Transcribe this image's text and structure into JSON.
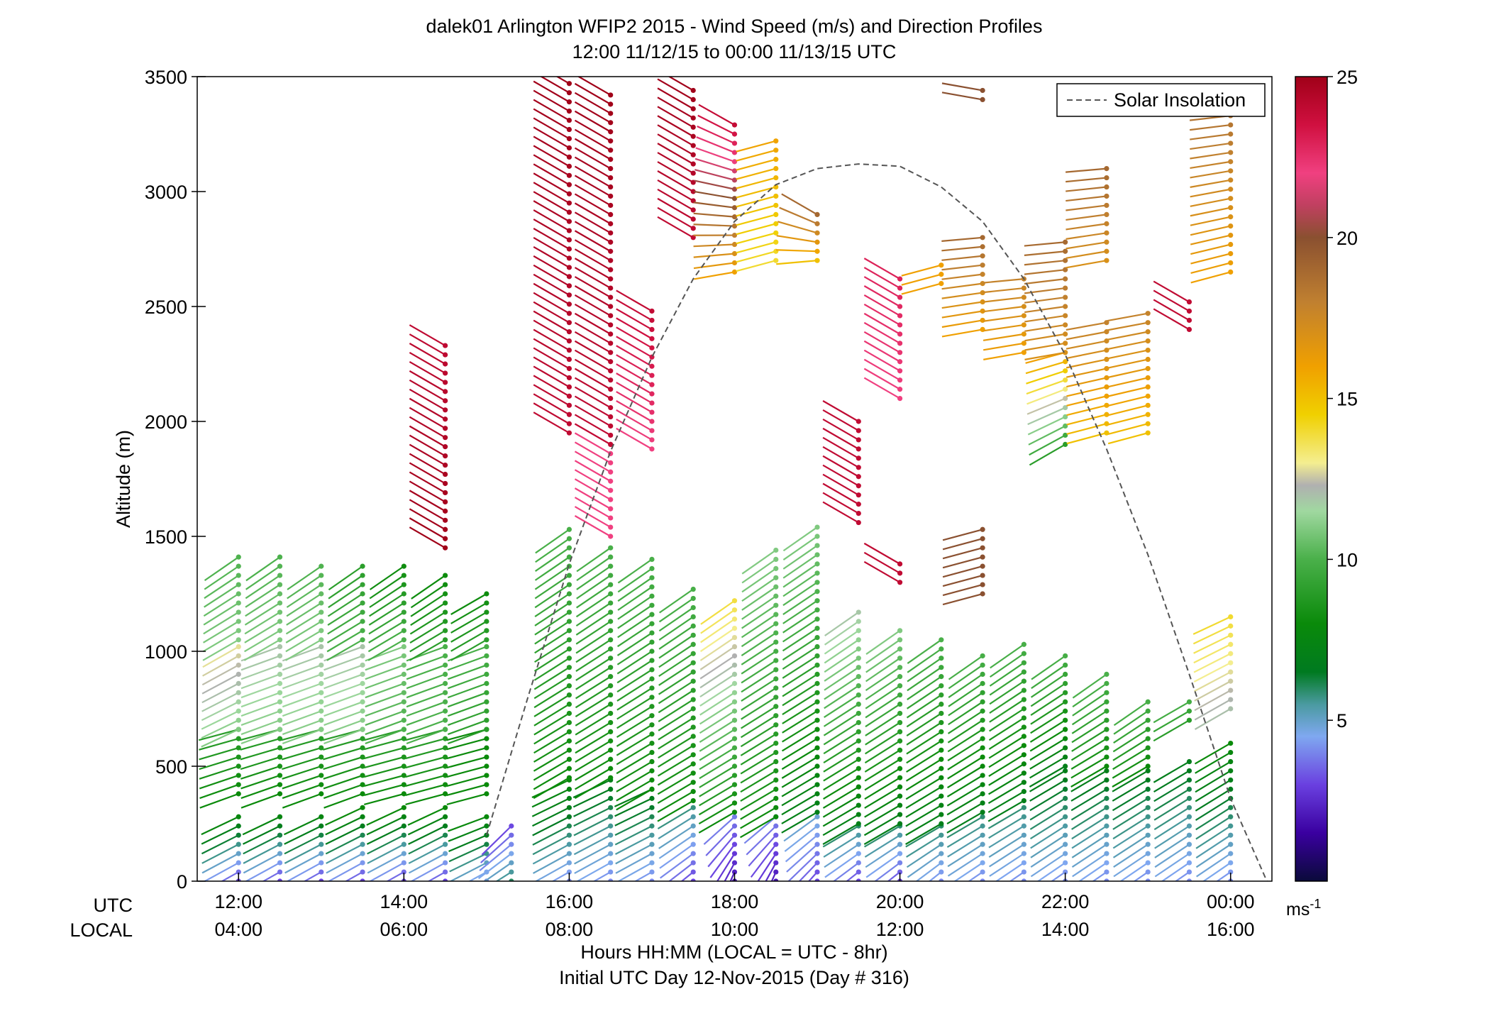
{
  "chart_data": {
    "type": "wind-barb profile",
    "title": "dalek01 Arlington WFIP2 2015 - Wind Speed (m/s) and Direction Profiles",
    "subtitle": "12:00 11/12/15 to 00:00 11/13/15  UTC",
    "ylabel": "Altitude (m)",
    "xlabel": "Hours HH:MM  (LOCAL = UTC - 8hr)",
    "xlabel2": "Initial UTC Day 12-Nov-2015 (Day # 316)",
    "utc_row_label": "UTC",
    "local_row_label": "LOCAL",
    "ylim": [
      0,
      3500
    ],
    "xlim_hours_utc": [
      11.5,
      24.5
    ],
    "yticks": [
      0,
      500,
      1000,
      1500,
      2000,
      2500,
      3000,
      3500
    ],
    "ytick_labels": [
      "0",
      "500",
      "1000",
      "1500",
      "2000",
      "2500",
      "3000",
      "3500"
    ],
    "xticks_hours_utc": [
      12,
      14,
      16,
      18,
      20,
      22,
      24
    ],
    "xtick_labels_utc": [
      "12:00",
      "14:00",
      "16:00",
      "18:00",
      "20:00",
      "22:00",
      "00:00"
    ],
    "xtick_labels_local": [
      "04:00",
      "06:00",
      "08:00",
      "10:00",
      "12:00",
      "14:00",
      "16:00"
    ],
    "legend": {
      "label": "Solar Insolation",
      "position": "top-right",
      "style": "dashed",
      "color": "#555555"
    },
    "solar_insolation_curve": {
      "x_hours_utc": [
        15.0,
        15.5,
        16.0,
        16.5,
        17.0,
        17.5,
        18.0,
        18.5,
        19.0,
        19.5,
        20.0,
        20.5,
        21.0,
        21.5,
        22.0,
        22.5,
        23.0,
        23.5,
        24.0,
        24.5
      ],
      "y_altitude_equiv": [
        200,
        800,
        1380,
        1870,
        2280,
        2620,
        2870,
        3030,
        3100,
        3120,
        3110,
        3020,
        2870,
        2620,
        2290,
        1880,
        1420,
        900,
        360,
        -50
      ]
    },
    "colorbar": {
      "label": "ms-1",
      "range": [
        0,
        25
      ],
      "ticks": [
        5,
        10,
        15,
        20,
        25
      ],
      "tick_labels": [
        "5",
        "10",
        "15",
        "20",
        "25"
      ],
      "stops": [
        {
          "v": 0,
          "color": "#0a0a3a"
        },
        {
          "v": 1.5,
          "color": "#3a00a0"
        },
        {
          "v": 3,
          "color": "#6a40e0"
        },
        {
          "v": 4.5,
          "color": "#7fa8f0"
        },
        {
          "v": 5.5,
          "color": "#4a9aa0"
        },
        {
          "v": 6.5,
          "color": "#007a20"
        },
        {
          "v": 8,
          "color": "#0a8a0a"
        },
        {
          "v": 10,
          "color": "#4ab04a"
        },
        {
          "v": 11.5,
          "color": "#a0d8a0"
        },
        {
          "v": 12.3,
          "color": "#b0b0b0"
        },
        {
          "v": 13,
          "color": "#f4ee90"
        },
        {
          "v": 14.5,
          "color": "#f0d000"
        },
        {
          "v": 16,
          "color": "#f0a000"
        },
        {
          "v": 18,
          "color": "#c08030"
        },
        {
          "v": 20,
          "color": "#8a5030"
        },
        {
          "v": 21,
          "color": "#c04060"
        },
        {
          "v": 22,
          "color": "#f04080"
        },
        {
          "v": 23.5,
          "color": "#d01040"
        },
        {
          "v": 25,
          "color": "#a00018"
        }
      ]
    },
    "profiles": [
      {
        "t": 12.0,
        "segments": [
          {
            "z0": 0,
            "z1": 300,
            "spd0": 3,
            "spd1": 8,
            "dir0": 240,
            "dir1": 245
          },
          {
            "z0": 380,
            "z1": 660,
            "spd0": 8,
            "spd1": 9,
            "dir0": 250,
            "dir1": 255
          },
          {
            "z0": 660,
            "z1": 1050,
            "spd0": 11,
            "spd1": 13,
            "dir0": 245,
            "dir1": 240
          },
          {
            "z0": 1050,
            "z1": 1440,
            "spd0": 11,
            "spd1": 10,
            "dir0": 240,
            "dir1": 235
          }
        ]
      },
      {
        "t": 12.5,
        "segments": [
          {
            "z0": 0,
            "z1": 310,
            "spd0": 3,
            "spd1": 8,
            "dir0": 240,
            "dir1": 245
          },
          {
            "z0": 380,
            "z1": 660,
            "spd0": 8,
            "spd1": 9,
            "dir0": 250,
            "dir1": 255
          },
          {
            "z0": 660,
            "z1": 1050,
            "spd0": 11,
            "spd1": 12,
            "dir0": 250,
            "dir1": 250
          },
          {
            "z0": 1050,
            "z1": 1420,
            "spd0": 11,
            "spd1": 10,
            "dir0": 240,
            "dir1": 235
          }
        ]
      },
      {
        "t": 13.0,
        "segments": [
          {
            "z0": 0,
            "z1": 310,
            "spd0": 3,
            "spd1": 8,
            "dir0": 240,
            "dir1": 245
          },
          {
            "z0": 380,
            "z1": 660,
            "spd0": 8,
            "spd1": 9,
            "dir0": 250,
            "dir1": 255
          },
          {
            "z0": 660,
            "z1": 1050,
            "spd0": 11,
            "spd1": 12,
            "dir0": 250,
            "dir1": 250
          },
          {
            "z0": 1050,
            "z1": 1400,
            "spd0": 11,
            "spd1": 10,
            "dir0": 240,
            "dir1": 235
          }
        ]
      },
      {
        "t": 13.5,
        "segments": [
          {
            "z0": 0,
            "z1": 320,
            "spd0": 3,
            "spd1": 8,
            "dir0": 240,
            "dir1": 245
          },
          {
            "z0": 380,
            "z1": 660,
            "spd0": 8,
            "spd1": 9,
            "dir0": 250,
            "dir1": 255
          },
          {
            "z0": 660,
            "z1": 1050,
            "spd0": 11,
            "spd1": 12,
            "dir0": 250,
            "dir1": 250
          },
          {
            "z0": 1050,
            "z1": 1380,
            "spd0": 10,
            "spd1": 9,
            "dir0": 240,
            "dir1": 235
          }
        ]
      },
      {
        "t": 14.0,
        "segments": [
          {
            "z0": 0,
            "z1": 320,
            "spd0": 3,
            "spd1": 8,
            "dir0": 240,
            "dir1": 245
          },
          {
            "z0": 380,
            "z1": 660,
            "spd0": 8,
            "spd1": 9,
            "dir0": 255,
            "dir1": 255
          },
          {
            "z0": 660,
            "z1": 1050,
            "spd0": 10,
            "spd1": 11,
            "dir0": 250,
            "dir1": 250
          },
          {
            "z0": 1050,
            "z1": 1400,
            "spd0": 10,
            "spd1": 8,
            "dir0": 240,
            "dir1": 235
          }
        ]
      },
      {
        "t": 14.5,
        "segments": [
          {
            "z0": 0,
            "z1": 320,
            "spd0": 3,
            "spd1": 8,
            "dir0": 240,
            "dir1": 245
          },
          {
            "z0": 380,
            "z1": 660,
            "spd0": 8,
            "spd1": 9,
            "dir0": 255,
            "dir1": 255
          },
          {
            "z0": 660,
            "z1": 1050,
            "spd0": 10,
            "spd1": 10,
            "dir0": 250,
            "dir1": 250
          },
          {
            "z0": 1050,
            "z1": 1360,
            "spd0": 9,
            "spd1": 8,
            "dir0": 240,
            "dir1": 235
          },
          {
            "z0": 1450,
            "z1": 2360,
            "spd0": 25,
            "spd1": 24,
            "dir0": 300,
            "dir1": 300
          }
        ]
      },
      {
        "t": 15.0,
        "segments": [
          {
            "z0": 0,
            "z1": 290,
            "spd0": 4,
            "spd1": 8,
            "dir0": 240,
            "dir1": 250
          },
          {
            "z0": 380,
            "z1": 660,
            "spd0": 8,
            "spd1": 8,
            "dir0": 255,
            "dir1": 255
          },
          {
            "z0": 660,
            "z1": 1050,
            "spd0": 9,
            "spd1": 10,
            "dir0": 250,
            "dir1": 250
          },
          {
            "z0": 1050,
            "z1": 1280,
            "spd0": 9,
            "spd1": 8,
            "dir0": 240,
            "dir1": 240
          }
        ]
      },
      {
        "t": 15.3,
        "segments": [
          {
            "z0": 0,
            "z1": 250,
            "spd0": 6,
            "spd1": 3,
            "dir0": 240,
            "dir1": 225
          }
        ]
      },
      {
        "t": 16.0,
        "segments": [
          {
            "z0": 0,
            "z1": 450,
            "spd0": 4,
            "spd1": 8,
            "dir0": 240,
            "dir1": 245
          },
          {
            "z0": 450,
            "z1": 1560,
            "spd0": 8,
            "spd1": 10,
            "dir0": 240,
            "dir1": 235
          },
          {
            "z0": 1950,
            "z1": 3480,
            "spd0": 24,
            "spd1": 25,
            "dir0": 300,
            "dir1": 300
          }
        ]
      },
      {
        "t": 16.5,
        "segments": [
          {
            "z0": 0,
            "z1": 450,
            "spd0": 4,
            "spd1": 7,
            "dir0": 240,
            "dir1": 245
          },
          {
            "z0": 450,
            "z1": 1480,
            "spd0": 8,
            "spd1": 10,
            "dir0": 240,
            "dir1": 235
          },
          {
            "z0": 1500,
            "z1": 1900,
            "spd0": 22,
            "spd1": 22,
            "dir0": 300,
            "dir1": 300
          },
          {
            "z0": 1900,
            "z1": 3420,
            "spd0": 24,
            "spd1": 25,
            "dir0": 300,
            "dir1": 300
          }
        ]
      },
      {
        "t": 17.0,
        "segments": [
          {
            "z0": 0,
            "z1": 400,
            "spd0": 4,
            "spd1": 7,
            "dir0": 240,
            "dir1": 245
          },
          {
            "z0": 400,
            "z1": 1420,
            "spd0": 8,
            "spd1": 10,
            "dir0": 240,
            "dir1": 235
          },
          {
            "z0": 1880,
            "z1": 2500,
            "spd0": 22,
            "spd1": 24,
            "dir0": 300,
            "dir1": 300
          }
        ]
      },
      {
        "t": 17.5,
        "segments": [
          {
            "z0": 0,
            "z1": 350,
            "spd0": 3,
            "spd1": 6,
            "dir0": 230,
            "dir1": 240
          },
          {
            "z0": 350,
            "z1": 1300,
            "spd0": 8,
            "spd1": 10,
            "dir0": 240,
            "dir1": 235
          },
          {
            "z0": 2800,
            "z1": 3470,
            "spd0": 24,
            "spd1": 25,
            "dir0": 300,
            "dir1": 300
          }
        ]
      },
      {
        "t": 18.0,
        "segments": [
          {
            "z0": 0,
            "z1": 300,
            "spd0": 2,
            "spd1": 4,
            "dir0": 200,
            "dir1": 230
          },
          {
            "z0": 300,
            "z1": 1250,
            "spd0": 8,
            "spd1": 14,
            "dir0": 240,
            "dir1": 235
          },
          {
            "z0": 2650,
            "z1": 3300,
            "spd0": 16,
            "spd1": 24,
            "dir0": 260,
            "dir1": 300
          }
        ]
      },
      {
        "t": 18.5,
        "segments": [
          {
            "z0": 0,
            "z1": 280,
            "spd0": 2,
            "spd1": 4,
            "dir0": 200,
            "dir1": 230
          },
          {
            "z0": 280,
            "z1": 1450,
            "spd0": 8,
            "spd1": 11,
            "dir0": 240,
            "dir1": 235
          },
          {
            "z0": 2700,
            "z1": 3250,
            "spd0": 14,
            "spd1": 16,
            "dir0": 255,
            "dir1": 255
          }
        ]
      },
      {
        "t": 19.0,
        "segments": [
          {
            "z0": 0,
            "z1": 300,
            "spd0": 3,
            "spd1": 5,
            "dir0": 220,
            "dir1": 235
          },
          {
            "z0": 300,
            "z1": 1560,
            "spd0": 7,
            "spd1": 11,
            "dir0": 240,
            "dir1": 235
          },
          {
            "z0": 2700,
            "z1": 2900,
            "spd0": 15,
            "spd1": 19,
            "dir0": 265,
            "dir1": 300
          }
        ]
      },
      {
        "t": 19.5,
        "segments": [
          {
            "z0": 0,
            "z1": 250,
            "spd0": 3,
            "spd1": 6,
            "dir0": 230,
            "dir1": 240
          },
          {
            "z0": 250,
            "z1": 1200,
            "spd0": 7,
            "spd1": 12,
            "dir0": 240,
            "dir1": 235
          },
          {
            "z0": 1560,
            "z1": 2000,
            "spd0": 24,
            "spd1": 24,
            "dir0": 300,
            "dir1": 300
          }
        ]
      },
      {
        "t": 20.0,
        "segments": [
          {
            "z0": 0,
            "z1": 250,
            "spd0": 3,
            "spd1": 6,
            "dir0": 230,
            "dir1": 240
          },
          {
            "z0": 250,
            "z1": 1100,
            "spd0": 7,
            "spd1": 11,
            "dir0": 240,
            "dir1": 235
          },
          {
            "z0": 1300,
            "z1": 1400,
            "spd0": 24,
            "spd1": 24,
            "dir0": 300,
            "dir1": 300
          },
          {
            "z0": 2100,
            "z1": 2650,
            "spd0": 22,
            "spd1": 23,
            "dir0": 300,
            "dir1": 300
          }
        ]
      },
      {
        "t": 20.5,
        "segments": [
          {
            "z0": 0,
            "z1": 250,
            "spd0": 4,
            "spd1": 6,
            "dir0": 230,
            "dir1": 240
          },
          {
            "z0": 250,
            "z1": 1050,
            "spd0": 7,
            "spd1": 10,
            "dir0": 240,
            "dir1": 235
          },
          {
            "z0": 2600,
            "z1": 2700,
            "spd0": 16,
            "spd1": 16,
            "dir0": 255,
            "dir1": 255
          }
        ]
      },
      {
        "t": 21.0,
        "segments": [
          {
            "z0": 0,
            "z1": 300,
            "spd0": 4,
            "spd1": 6,
            "dir0": 235,
            "dir1": 240
          },
          {
            "z0": 300,
            "z1": 1000,
            "spd0": 7,
            "spd1": 10,
            "dir0": 240,
            "dir1": 235
          },
          {
            "z0": 1250,
            "z1": 1550,
            "spd0": 20,
            "spd1": 20,
            "dir0": 255,
            "dir1": 255
          },
          {
            "z0": 2400,
            "z1": 2800,
            "spd0": 16,
            "spd1": 19,
            "dir0": 260,
            "dir1": 265
          },
          {
            "z0": 3400,
            "z1": 3460,
            "spd0": 20,
            "spd1": 20,
            "dir0": 280,
            "dir1": 280
          }
        ]
      },
      {
        "t": 21.5,
        "segments": [
          {
            "z0": 0,
            "z1": 350,
            "spd0": 4,
            "spd1": 6,
            "dir0": 235,
            "dir1": 240
          },
          {
            "z0": 350,
            "z1": 1050,
            "spd0": 7,
            "spd1": 10,
            "dir0": 240,
            "dir1": 235
          },
          {
            "z0": 2300,
            "z1": 2650,
            "spd0": 16,
            "spd1": 18,
            "dir0": 260,
            "dir1": 265
          }
        ]
      },
      {
        "t": 22.0,
        "segments": [
          {
            "z0": 0,
            "z1": 500,
            "spd0": 4,
            "spd1": 7,
            "dir0": 235,
            "dir1": 240
          },
          {
            "z0": 500,
            "z1": 1000,
            "spd0": 7,
            "spd1": 10,
            "dir0": 240,
            "dir1": 235
          },
          {
            "z0": 1900,
            "z1": 2300,
            "spd0": 9,
            "spd1": 16,
            "dir0": 240,
            "dir1": 255
          },
          {
            "z0": 2300,
            "z1": 2800,
            "spd0": 17,
            "spd1": 19,
            "dir0": 260,
            "dir1": 265
          }
        ]
      },
      {
        "t": 22.5,
        "segments": [
          {
            "z0": 0,
            "z1": 500,
            "spd0": 4,
            "spd1": 7,
            "dir0": 235,
            "dir1": 240
          },
          {
            "z0": 500,
            "z1": 900,
            "spd0": 8,
            "spd1": 10,
            "dir0": 240,
            "dir1": 235
          },
          {
            "z0": 1950,
            "z1": 2450,
            "spd0": 15,
            "spd1": 18,
            "dir0": 255,
            "dir1": 260
          },
          {
            "z0": 2700,
            "z1": 3100,
            "spd0": 17,
            "spd1": 19,
            "dir0": 260,
            "dir1": 265
          }
        ]
      },
      {
        "t": 23.0,
        "segments": [
          {
            "z0": 0,
            "z1": 500,
            "spd0": 4,
            "spd1": 7,
            "dir0": 235,
            "dir1": 240
          },
          {
            "z0": 500,
            "z1": 800,
            "spd0": 8,
            "spd1": 10,
            "dir0": 240,
            "dir1": 235
          },
          {
            "z0": 1950,
            "z1": 2500,
            "spd0": 15,
            "spd1": 18,
            "dir0": 255,
            "dir1": 260
          }
        ]
      },
      {
        "t": 23.5,
        "segments": [
          {
            "z0": 0,
            "z1": 550,
            "spd0": 4,
            "spd1": 7,
            "dir0": 235,
            "dir1": 240
          },
          {
            "z0": 700,
            "z1": 800,
            "spd0": 9,
            "spd1": 10,
            "dir0": 240,
            "dir1": 240
          },
          {
            "z0": 2400,
            "z1": 2550,
            "spd0": 24,
            "spd1": 24,
            "dir0": 300,
            "dir1": 300
          }
        ]
      },
      {
        "t": 24.0,
        "segments": [
          {
            "z0": 0,
            "z1": 600,
            "spd0": 4,
            "spd1": 8,
            "dir0": 235,
            "dir1": 240
          },
          {
            "z0": 750,
            "z1": 1150,
            "spd0": 12,
            "spd1": 14,
            "dir0": 240,
            "dir1": 245
          },
          {
            "z0": 2650,
            "z1": 3450,
            "spd0": 16,
            "spd1": 19,
            "dir0": 255,
            "dir1": 265
          }
        ]
      }
    ]
  }
}
